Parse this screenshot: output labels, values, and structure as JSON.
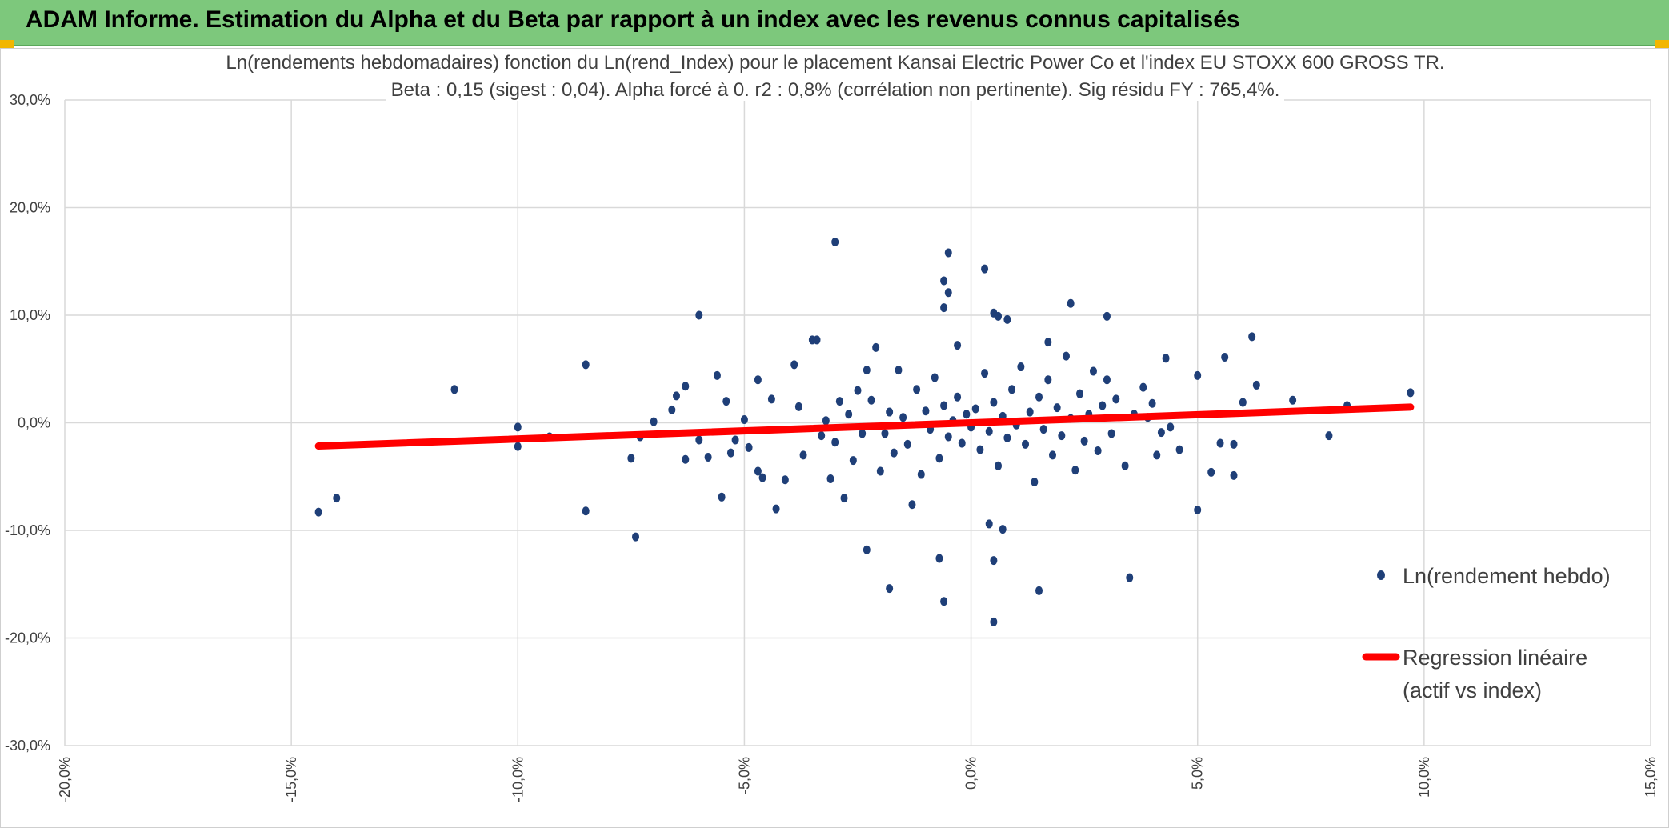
{
  "header": {
    "title": "ADAM Informe. Estimation du Alpha et du Beta par rapport à un index avec les revenus connus capitalisés"
  },
  "colors": {
    "header_bg": "#7dc87c",
    "points": "#1f3f78",
    "regression": "#ff0000",
    "grid": "#d9d9d9",
    "corner": "#f2b600"
  },
  "chart_data": {
    "type": "scatter",
    "title_line1": "Ln(rendements hebdomadaires) fonction du Ln(rend_Index) pour le placement Kansai Electric Power Co  et l'index EU STOXX 600 GROSS TR.",
    "title_line2": "Beta : 0,15 (sigest : 0,04). Alpha forcé à 0. r2 : 0,8% (corrélation non pertinente). Sig résidu FY : 765,4%.",
    "xlim": [
      -0.2,
      0.15
    ],
    "ylim": [
      -0.3,
      0.3
    ],
    "x_ticks": [
      -0.2,
      -0.15,
      -0.1,
      -0.05,
      0.0,
      0.05,
      0.1,
      0.15
    ],
    "x_tick_labels": [
      "-20,0%",
      "-15,0%",
      "-10,0%",
      "-5,0%",
      "0,0%",
      "5,0%",
      "10,0%",
      "15,0%"
    ],
    "y_ticks": [
      0.3,
      0.2,
      0.1,
      0.0,
      -0.1,
      -0.2,
      -0.3
    ],
    "y_tick_labels": [
      "30,0%",
      "20,0%",
      "10,0%",
      "0,0%",
      "-10,0%",
      "-20,0%",
      "-30,0%"
    ],
    "grid": true,
    "legend_position": "right",
    "series": [
      {
        "name": "Ln(rendement hebdo)",
        "kind": "points",
        "sample_points": [
          [
            -0.144,
            -0.083
          ],
          [
            -0.14,
            -0.07
          ],
          [
            -0.114,
            0.031
          ],
          [
            -0.1,
            -0.004
          ],
          [
            -0.1,
            -0.022
          ],
          [
            -0.093,
            -0.013
          ],
          [
            -0.085,
            0.054
          ],
          [
            -0.085,
            -0.082
          ],
          [
            -0.075,
            -0.033
          ],
          [
            -0.074,
            -0.106
          ],
          [
            -0.073,
            -0.013
          ],
          [
            -0.07,
            0.001
          ],
          [
            -0.066,
            0.012
          ],
          [
            -0.065,
            0.025
          ],
          [
            -0.063,
            0.034
          ],
          [
            -0.063,
            -0.034
          ],
          [
            -0.06,
            0.1
          ],
          [
            -0.06,
            -0.016
          ],
          [
            -0.058,
            -0.032
          ],
          [
            -0.056,
            0.044
          ],
          [
            -0.055,
            -0.069
          ],
          [
            -0.054,
            0.02
          ],
          [
            -0.053,
            -0.028
          ],
          [
            -0.052,
            -0.016
          ],
          [
            -0.05,
            0.003
          ],
          [
            -0.049,
            -0.023
          ],
          [
            -0.047,
            0.04
          ],
          [
            -0.047,
            -0.045
          ],
          [
            -0.046,
            -0.051
          ],
          [
            -0.044,
            0.022
          ],
          [
            -0.043,
            -0.08
          ],
          [
            -0.041,
            -0.053
          ],
          [
            -0.039,
            0.054
          ],
          [
            -0.038,
            0.015
          ],
          [
            -0.037,
            -0.03
          ],
          [
            -0.035,
            0.077
          ],
          [
            -0.034,
            0.077
          ],
          [
            -0.033,
            -0.012
          ],
          [
            -0.032,
            0.002
          ],
          [
            -0.031,
            -0.052
          ],
          [
            -0.03,
            -0.018
          ],
          [
            -0.029,
            0.02
          ],
          [
            -0.028,
            -0.07
          ],
          [
            -0.027,
            0.008
          ],
          [
            -0.026,
            -0.035
          ],
          [
            -0.025,
            0.03
          ],
          [
            -0.024,
            -0.01
          ],
          [
            -0.023,
            0.049
          ],
          [
            -0.022,
            0.021
          ],
          [
            -0.021,
            0.07
          ],
          [
            -0.02,
            -0.045
          ],
          [
            -0.019,
            -0.01
          ],
          [
            -0.018,
            0.01
          ],
          [
            -0.017,
            -0.028
          ],
          [
            -0.016,
            0.049
          ],
          [
            -0.015,
            0.005
          ],
          [
            -0.014,
            -0.02
          ],
          [
            -0.013,
            -0.076
          ],
          [
            -0.012,
            0.031
          ],
          [
            -0.011,
            -0.048
          ],
          [
            -0.01,
            0.011
          ],
          [
            -0.009,
            -0.006
          ],
          [
            -0.008,
            0.042
          ],
          [
            -0.007,
            -0.033
          ],
          [
            -0.006,
            0.016
          ],
          [
            -0.005,
            -0.013
          ],
          [
            -0.004,
            0.002
          ],
          [
            -0.003,
            0.024
          ],
          [
            -0.002,
            -0.019
          ],
          [
            -0.001,
            0.008
          ],
          [
            0.0,
            -0.004
          ],
          [
            0.001,
            0.013
          ],
          [
            0.002,
            -0.025
          ],
          [
            0.003,
            0.046
          ],
          [
            0.004,
            -0.008
          ],
          [
            0.005,
            0.019
          ],
          [
            0.006,
            -0.04
          ],
          [
            0.007,
            0.006
          ],
          [
            0.008,
            -0.014
          ],
          [
            0.009,
            0.031
          ],
          [
            0.01,
            -0.002
          ],
          [
            0.011,
            0.052
          ],
          [
            0.012,
            -0.02
          ],
          [
            0.013,
            0.01
          ],
          [
            0.014,
            -0.055
          ],
          [
            0.015,
            0.024
          ],
          [
            0.016,
            -0.006
          ],
          [
            0.017,
            0.04
          ],
          [
            0.018,
            -0.03
          ],
          [
            0.019,
            0.014
          ],
          [
            0.02,
            -0.012
          ],
          [
            0.021,
            0.062
          ],
          [
            0.022,
            0.004
          ],
          [
            0.023,
            -0.044
          ],
          [
            0.024,
            0.027
          ],
          [
            0.025,
            -0.017
          ],
          [
            0.026,
            0.008
          ],
          [
            0.027,
            0.048
          ],
          [
            0.028,
            -0.026
          ],
          [
            0.029,
            0.016
          ],
          [
            0.03,
            0.04
          ],
          [
            0.031,
            -0.01
          ],
          [
            0.032,
            0.022
          ],
          [
            0.034,
            -0.04
          ],
          [
            0.036,
            0.008
          ],
          [
            -0.03,
            0.168
          ],
          [
            -0.023,
            -0.118
          ],
          [
            -0.018,
            -0.154
          ],
          [
            -0.007,
            -0.126
          ],
          [
            -0.006,
            -0.166
          ],
          [
            -0.005,
            0.158
          ],
          [
            -0.006,
            0.132
          ],
          [
            -0.005,
            0.121
          ],
          [
            -0.006,
            0.107
          ],
          [
            -0.003,
            0.072
          ],
          [
            0.003,
            0.143
          ],
          [
            0.005,
            0.102
          ],
          [
            0.006,
            0.099
          ],
          [
            0.008,
            0.096
          ],
          [
            0.005,
            -0.185
          ],
          [
            0.005,
            -0.128
          ],
          [
            0.007,
            -0.099
          ],
          [
            0.004,
            -0.094
          ],
          [
            0.015,
            -0.156
          ],
          [
            0.017,
            0.075
          ],
          [
            0.022,
            0.111
          ],
          [
            0.03,
            0.099
          ],
          [
            0.035,
            -0.144
          ],
          [
            0.043,
            0.06
          ],
          [
            0.05,
            -0.081
          ],
          [
            0.05,
            0.044
          ],
          [
            0.053,
            -0.046
          ],
          [
            0.055,
            -0.019
          ],
          [
            0.056,
            0.061
          ],
          [
            0.058,
            -0.049
          ],
          [
            0.058,
            -0.02
          ],
          [
            0.06,
            0.019
          ],
          [
            0.062,
            0.08
          ],
          [
            0.063,
            0.035
          ],
          [
            0.071,
            0.021
          ],
          [
            0.079,
            -0.012
          ],
          [
            0.083,
            0.016
          ],
          [
            0.097,
            0.028
          ],
          [
            0.04,
            0.018
          ],
          [
            0.042,
            -0.009
          ],
          [
            0.038,
            0.033
          ],
          [
            0.044,
            -0.004
          ],
          [
            0.046,
            -0.025
          ],
          [
            0.041,
            -0.03
          ],
          [
            0.039,
            0.005
          ]
        ]
      },
      {
        "name": "Regression linéaire (actif vs index)",
        "kind": "line",
        "slope": 0.15,
        "intercept": 0.0,
        "x_range": [
          -0.144,
          0.097
        ]
      }
    ],
    "legend": [
      {
        "label": "Ln(rendement hebdo)"
      },
      {
        "label_line1": "Regression linéaire",
        "label_line2": "(actif vs index)"
      }
    ]
  }
}
